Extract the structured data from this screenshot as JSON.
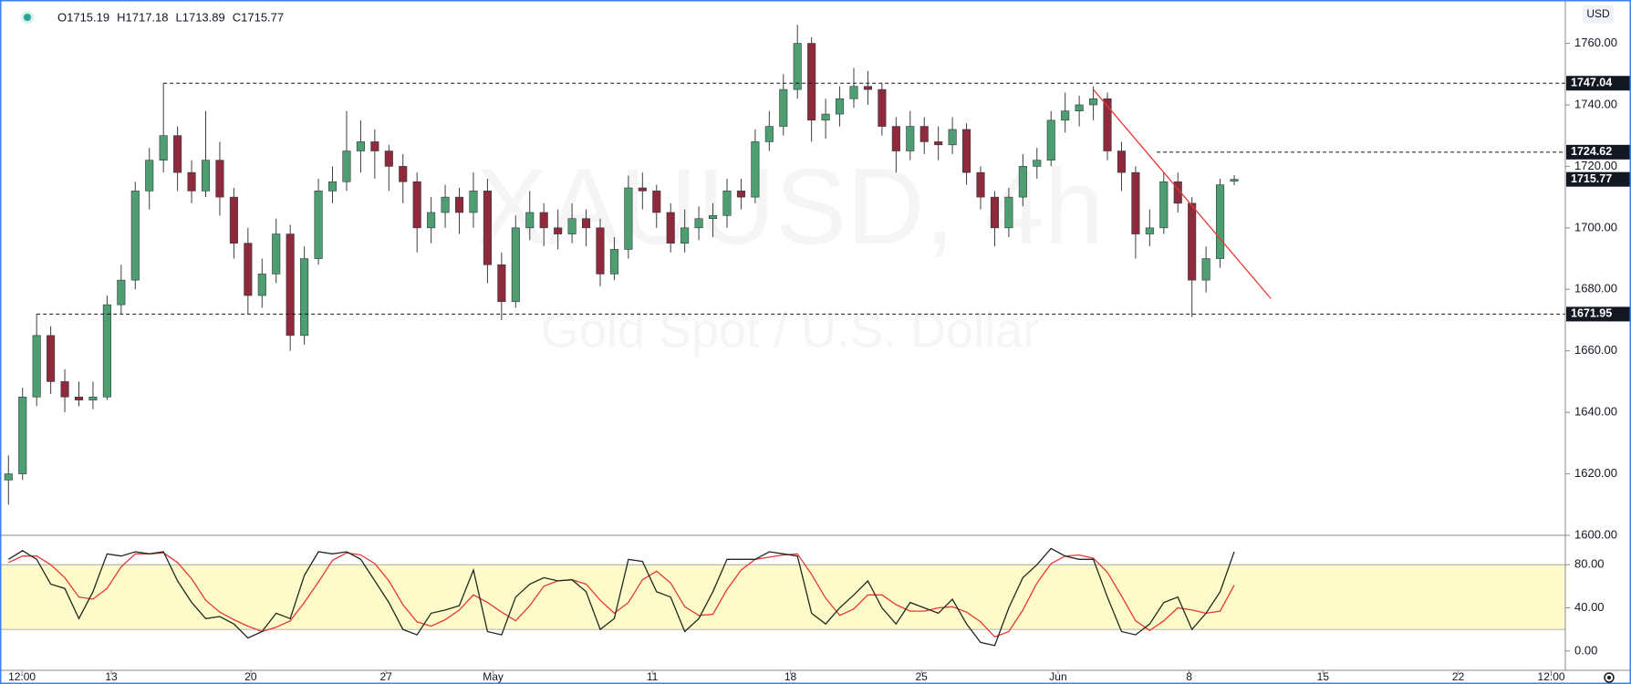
{
  "chart_data": [
    {
      "type": "candlestick",
      "symbol_dot": "",
      "header": [
        "O1715.19",
        "H1717.18",
        "L1713.89",
        "C1715.77"
      ],
      "currency": "USD",
      "watermark": [
        "XAUUSD, 4h",
        "Gold Spot / U.S. Dollar"
      ],
      "up_color": "#4f9e72",
      "down_color": "#8e2a3c",
      "xlim": [
        -0.6,
        110.5
      ],
      "xticks": [
        {
          "value": 0.96,
          "label": "12:00"
        },
        {
          "value": 7.3,
          "label": "13"
        },
        {
          "value": 17.2,
          "label": "20"
        },
        {
          "value": 26.8,
          "label": "27"
        },
        {
          "value": 34.4,
          "label": "May"
        },
        {
          "value": 45.7,
          "label": "11"
        },
        {
          "value": 55.5,
          "label": "18"
        },
        {
          "value": 64.8,
          "label": "25"
        },
        {
          "value": 74.5,
          "label": "Jun"
        },
        {
          "value": 83.8,
          "label": "8"
        },
        {
          "value": 93.3,
          "label": "15"
        },
        {
          "value": 102.9,
          "label": "22"
        },
        {
          "value": 109.5,
          "label": "12:00"
        }
      ],
      "ylim": [
        1600,
        1774.1
      ],
      "yticks": [
        {
          "value": 1600,
          "label": "1600.00"
        },
        {
          "value": 1620,
          "label": "1620.00"
        },
        {
          "value": 1640,
          "label": "1640.00"
        },
        {
          "value": 1660,
          "label": "1660.00"
        },
        {
          "value": 1680,
          "label": "1680.00"
        },
        {
          "value": 1700,
          "label": "1700.00"
        },
        {
          "value": 1720,
          "label": "1720.00"
        },
        {
          "value": 1740,
          "label": "1740.00"
        },
        {
          "value": 1760,
          "label": "1760.00"
        }
      ],
      "levels": [
        {
          "value": 1747.04,
          "x_start": 11
        },
        {
          "value": 1724.62,
          "x_start": 81.5
        },
        {
          "value": 1671.95,
          "x_start": 2
        }
      ],
      "trendline": {
        "color": "#e53935",
        "x": [
          77,
          89.6
        ],
        "y": [
          1745,
          1677
        ]
      },
      "candles": [
        [
          1618,
          1626,
          1610,
          1620
        ],
        [
          1620,
          1648,
          1618,
          1645
        ],
        [
          1645,
          1672,
          1642,
          1665
        ],
        [
          1665,
          1668,
          1646,
          1650
        ],
        [
          1650,
          1654,
          1640,
          1645
        ],
        [
          1645,
          1650,
          1642,
          1644
        ],
        [
          1644,
          1650,
          1641,
          1645
        ],
        [
          1645,
          1678,
          1644,
          1675
        ],
        [
          1675,
          1688,
          1672,
          1683
        ],
        [
          1683,
          1715,
          1680,
          1712
        ],
        [
          1712,
          1726,
          1706,
          1722
        ],
        [
          1722,
          1747.04,
          1718,
          1730
        ],
        [
          1730,
          1733,
          1712,
          1718
        ],
        [
          1718,
          1722,
          1708,
          1712
        ],
        [
          1712,
          1738,
          1710,
          1722
        ],
        [
          1722,
          1728,
          1704,
          1710
        ],
        [
          1710,
          1713,
          1690,
          1695
        ],
        [
          1695,
          1700,
          1672,
          1678
        ],
        [
          1678,
          1690,
          1674,
          1685
        ],
        [
          1685,
          1703,
          1682,
          1698
        ],
        [
          1698,
          1701,
          1660,
          1665
        ],
        [
          1665,
          1694,
          1662,
          1690
        ],
        [
          1690,
          1716,
          1688,
          1712
        ],
        [
          1712,
          1720,
          1708,
          1715
        ],
        [
          1715,
          1738,
          1712,
          1725
        ],
        [
          1725,
          1735,
          1718,
          1728
        ],
        [
          1728,
          1732,
          1716,
          1725
        ],
        [
          1725,
          1727,
          1712,
          1720
        ],
        [
          1720,
          1724,
          1708,
          1715
        ],
        [
          1715,
          1718,
          1692,
          1700
        ],
        [
          1700,
          1710,
          1695,
          1705
        ],
        [
          1705,
          1714,
          1700,
          1710
        ],
        [
          1710,
          1713,
          1698,
          1705
        ],
        [
          1705,
          1718,
          1700,
          1712
        ],
        [
          1712,
          1716,
          1682,
          1688
        ],
        [
          1688,
          1692,
          1670,
          1676
        ],
        [
          1676,
          1704,
          1674,
          1700
        ],
        [
          1700,
          1712,
          1696,
          1705
        ],
        [
          1705,
          1708,
          1694,
          1700
        ],
        [
          1700,
          1706,
          1693,
          1698
        ],
        [
          1698,
          1708,
          1695,
          1703
        ],
        [
          1703,
          1706,
          1694,
          1700
        ],
        [
          1700,
          1703,
          1681,
          1685
        ],
        [
          1685,
          1697,
          1683,
          1693
        ],
        [
          1693,
          1717,
          1690,
          1713
        ],
        [
          1713,
          1718,
          1706,
          1712
        ],
        [
          1712,
          1714,
          1700,
          1705
        ],
        [
          1705,
          1708,
          1692,
          1695
        ],
        [
          1695,
          1706,
          1692,
          1700
        ],
        [
          1700,
          1707,
          1696,
          1703
        ],
        [
          1703,
          1708,
          1697,
          1704
        ],
        [
          1704,
          1716,
          1700,
          1712
        ],
        [
          1712,
          1716,
          1706,
          1710
        ],
        [
          1710,
          1732,
          1708,
          1728
        ],
        [
          1728,
          1738,
          1725,
          1733
        ],
        [
          1733,
          1750,
          1730,
          1745
        ],
        [
          1745,
          1766,
          1742,
          1760
        ],
        [
          1760,
          1762,
          1728,
          1735
        ],
        [
          1735,
          1742,
          1729,
          1737
        ],
        [
          1737,
          1746,
          1733,
          1742
        ],
        [
          1742,
          1752,
          1739,
          1746
        ],
        [
          1746,
          1751,
          1740,
          1745
        ],
        [
          1745,
          1747,
          1730,
          1733
        ],
        [
          1733,
          1736,
          1718,
          1725
        ],
        [
          1725,
          1738,
          1722,
          1733
        ],
        [
          1733,
          1736,
          1724,
          1728
        ],
        [
          1728,
          1733,
          1722,
          1727
        ],
        [
          1727,
          1736,
          1724,
          1732
        ],
        [
          1732,
          1734,
          1714,
          1718
        ],
        [
          1718,
          1720,
          1706,
          1710
        ],
        [
          1710,
          1712,
          1694,
          1700
        ],
        [
          1700,
          1713,
          1697,
          1710
        ],
        [
          1710,
          1724,
          1707,
          1720
        ],
        [
          1720,
          1726,
          1716,
          1722
        ],
        [
          1722,
          1738,
          1720,
          1735
        ],
        [
          1735,
          1744,
          1731,
          1738
        ],
        [
          1738,
          1743,
          1733,
          1740
        ],
        [
          1740,
          1746,
          1735,
          1742
        ],
        [
          1742,
          1744,
          1722,
          1725
        ],
        [
          1725,
          1728,
          1712,
          1718
        ],
        [
          1718,
          1720,
          1690,
          1698
        ],
        [
          1698,
          1706,
          1694,
          1700
        ],
        [
          1700,
          1718,
          1698,
          1715
        ],
        [
          1715,
          1718,
          1705,
          1708
        ],
        [
          1708,
          1710,
          1671,
          1683
        ],
        [
          1683,
          1694,
          1679,
          1690
        ],
        [
          1690,
          1716,
          1687,
          1714
        ],
        [
          1715.19,
          1717.18,
          1713.89,
          1715.77
        ]
      ]
    },
    {
      "type": "line",
      "ylim": [
        -17.9,
        107.2
      ],
      "yticks": [
        {
          "value": 0,
          "label": "0.00"
        },
        {
          "value": 40,
          "label": "40.00"
        },
        {
          "value": 80,
          "label": "80.00"
        }
      ],
      "band": [
        20,
        80
      ],
      "series": [
        {
          "color": "#1f2a1f",
          "values": [
            85,
            93,
            85,
            62,
            58,
            30,
            55,
            90,
            88,
            92,
            90,
            92,
            65,
            45,
            30,
            32,
            25,
            12,
            18,
            35,
            30,
            70,
            92,
            90,
            92,
            85,
            65,
            45,
            20,
            15,
            35,
            38,
            42,
            75,
            18,
            15,
            50,
            62,
            68,
            65,
            66,
            55,
            20,
            30,
            85,
            83,
            55,
            50,
            18,
            30,
            55,
            85,
            85,
            85,
            92,
            90,
            88,
            35,
            25,
            40,
            52,
            65,
            40,
            25,
            45,
            40,
            35,
            48,
            25,
            8,
            5,
            40,
            68,
            80,
            95,
            88,
            85,
            85,
            50,
            18,
            15,
            25,
            45,
            50,
            20,
            35,
            55,
            92
          ]
        },
        {
          "color": "#e53935",
          "values": [
            82,
            88,
            88,
            80,
            68,
            50,
            48,
            58,
            78,
            90,
            90,
            91,
            82,
            67,
            47,
            36,
            29,
            23,
            18,
            22,
            28,
            45,
            64,
            84,
            91,
            89,
            81,
            65,
            43,
            27,
            23,
            29,
            38,
            52,
            45,
            36,
            28,
            42,
            60,
            65,
            66,
            62,
            47,
            35,
            45,
            66,
            74,
            63,
            41,
            33,
            34,
            57,
            75,
            85,
            87,
            89,
            90,
            71,
            49,
            33,
            39,
            52,
            52,
            43,
            37,
            37,
            40,
            41,
            36,
            27,
            13,
            18,
            38,
            63,
            81,
            88,
            89,
            86,
            73,
            51,
            28,
            19,
            28,
            40,
            38,
            35,
            37,
            61
          ]
        }
      ]
    }
  ]
}
